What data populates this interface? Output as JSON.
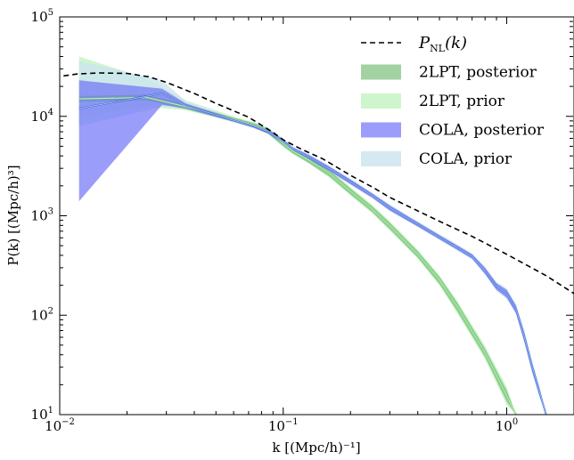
{
  "chart_data": {
    "type": "line",
    "xscale": "log",
    "yscale": "log",
    "xlim": [
      0.01,
      2.0
    ],
    "ylim": [
      10,
      100000
    ],
    "xlabel": "k [(Mpc/h)⁻¹]",
    "ylabel": "P(k) [(Mpc/h)³]",
    "xticks": [
      {
        "value": 0.01,
        "base": "10",
        "exp": "−2"
      },
      {
        "value": 0.1,
        "base": "10",
        "exp": "−1"
      },
      {
        "value": 1,
        "base": "10",
        "exp": "0"
      }
    ],
    "yticks": [
      {
        "value": 10,
        "base": "10",
        "exp": "1"
      },
      {
        "value": 100,
        "base": "10",
        "exp": "2"
      },
      {
        "value": 1000,
        "base": "10",
        "exp": "3"
      },
      {
        "value": 10000,
        "base": "10",
        "exp": "4"
      },
      {
        "value": 100000,
        "base": "10",
        "exp": "5"
      }
    ],
    "legend_position": "top-right",
    "series": [
      {
        "name": "P_NL(k)",
        "style": "dashed",
        "color": "#000000",
        "x": [
          0.0104,
          0.012,
          0.015,
          0.02,
          0.025,
          0.03,
          0.04,
          0.05,
          0.07,
          0.09,
          0.1,
          0.12,
          0.15,
          0.2,
          0.25,
          0.3,
          0.4,
          0.5,
          0.7,
          1.0,
          1.5,
          2.0
        ],
        "y": [
          25500,
          26700,
          27300,
          27000,
          25000,
          22000,
          17000,
          13500,
          9800,
          6900,
          5800,
          4700,
          3750,
          2550,
          1950,
          1530,
          1120,
          880,
          620,
          410,
          250,
          165
        ]
      },
      {
        "name": "2LPT, posterior",
        "color": "#5aaf5a",
        "fill": "#7bbf7b",
        "x": [
          0.0122,
          0.0245,
          0.0367,
          0.0612,
          0.0735,
          0.0857,
          0.1,
          0.11,
          0.13,
          0.16,
          0.2,
          0.25,
          0.3,
          0.4,
          0.5,
          0.6,
          0.8,
          1.0,
          1.1
        ],
        "y": [
          15000,
          15500,
          12500,
          9200,
          8200,
          7100,
          5400,
          4500,
          3650,
          2700,
          1760,
          1170,
          790,
          410,
          225,
          122,
          42,
          15.5,
          10
        ],
        "lower": [
          14000,
          14500,
          11800,
          8800,
          7800,
          6700,
          5000,
          4250,
          3400,
          2500,
          1640,
          1090,
          730,
          380,
          206,
          110,
          38,
          13.5,
          10
        ],
        "upper": [
          16000,
          16500,
          13200,
          9600,
          8600,
          7500,
          5800,
          4750,
          3900,
          2900,
          1880,
          1250,
          850,
          440,
          244,
          134,
          46,
          17.5,
          10
        ]
      },
      {
        "name": "2LPT, prior",
        "color": "#b5f0b5",
        "fill": "#c4f5c4",
        "x": [
          0.0122,
          0.0245,
          0.0367,
          0.0612,
          0.0735,
          0.0857,
          0.1,
          0.11,
          0.13,
          0.16,
          0.2,
          0.25,
          0.3,
          0.4,
          0.5,
          0.6,
          0.8,
          1.0,
          1.1
        ],
        "y": [
          15000,
          15500,
          12500,
          9200,
          8200,
          7100,
          5400,
          4500,
          3650,
          2700,
          1760,
          1170,
          790,
          410,
          225,
          122,
          42,
          15.5,
          10
        ],
        "lower": [
          10000,
          12500,
          11500,
          8700,
          7700,
          6600,
          4900,
          4200,
          3350,
          2450,
          1600,
          1060,
          710,
          370,
          200,
          105,
          36,
          12.5,
          10
        ],
        "upper": [
          40000,
          24000,
          14500,
          9800,
          8800,
          7700,
          5900,
          4850,
          4000,
          2980,
          1940,
          1290,
          880,
          455,
          252,
          140,
          49,
          19,
          10
        ]
      },
      {
        "name": "COLA, posterior",
        "color": "#1a2fd6",
        "fill": "#6f73f7",
        "x": [
          0.0122,
          0.0287,
          0.0367,
          0.0612,
          0.0735,
          0.0857,
          0.1,
          0.11,
          0.13,
          0.16,
          0.2,
          0.25,
          0.3,
          0.4,
          0.5,
          0.6,
          0.7,
          0.8,
          0.9,
          1.0,
          1.1,
          1.2,
          1.3,
          1.4,
          1.5
        ],
        "y": [
          12000,
          17000,
          12800,
          9000,
          8000,
          7000,
          5600,
          4700,
          3900,
          3000,
          2200,
          1600,
          1200,
          820,
          610,
          480,
          390,
          280,
          195,
          165,
          115,
          60,
          30,
          17,
          10
        ],
        "lower": [
          1400,
          13000,
          12000,
          8700,
          7700,
          6700,
          5300,
          4500,
          3700,
          2850,
          2080,
          1520,
          1130,
          780,
          580,
          455,
          370,
          260,
          180,
          150,
          105,
          54,
          27,
          15.5,
          10
        ],
        "upper": [
          23000,
          19000,
          13500,
          9300,
          8300,
          7300,
          5900,
          4900,
          4100,
          3150,
          2320,
          1680,
          1270,
          860,
          640,
          505,
          410,
          300,
          210,
          180,
          125,
          66,
          33,
          18.5,
          10
        ]
      },
      {
        "name": "COLA, prior",
        "color": "#8fbde8",
        "fill": "#cde5ee",
        "x": [
          0.0122,
          0.0287,
          0.0367,
          0.0612,
          0.0735,
          0.0857,
          0.1,
          0.11,
          0.13,
          0.16,
          0.2,
          0.25,
          0.3,
          0.4,
          0.5,
          0.6,
          0.7,
          0.8,
          0.9,
          1.0,
          1.1,
          1.2,
          1.3,
          1.4,
          1.5
        ],
        "y": [
          12000,
          17000,
          12800,
          9000,
          8000,
          7000,
          5600,
          4700,
          3900,
          3000,
          2200,
          1600,
          1200,
          820,
          610,
          480,
          390,
          280,
          195,
          165,
          115,
          60,
          30,
          17,
          10
        ],
        "lower": [
          8000,
          12500,
          11800,
          8600,
          7600,
          6600,
          5200,
          4450,
          3650,
          2820,
          2050,
          1500,
          1110,
          770,
          570,
          448,
          362,
          254,
          176,
          146,
          102,
          52,
          26,
          15,
          10
        ],
        "upper": [
          36000,
          23000,
          14200,
          9600,
          8600,
          7600,
          6000,
          5000,
          4200,
          3200,
          2360,
          1720,
          1300,
          880,
          655,
          515,
          420,
          308,
          216,
          186,
          130,
          70,
          35,
          19.5,
          10
        ]
      }
    ]
  }
}
